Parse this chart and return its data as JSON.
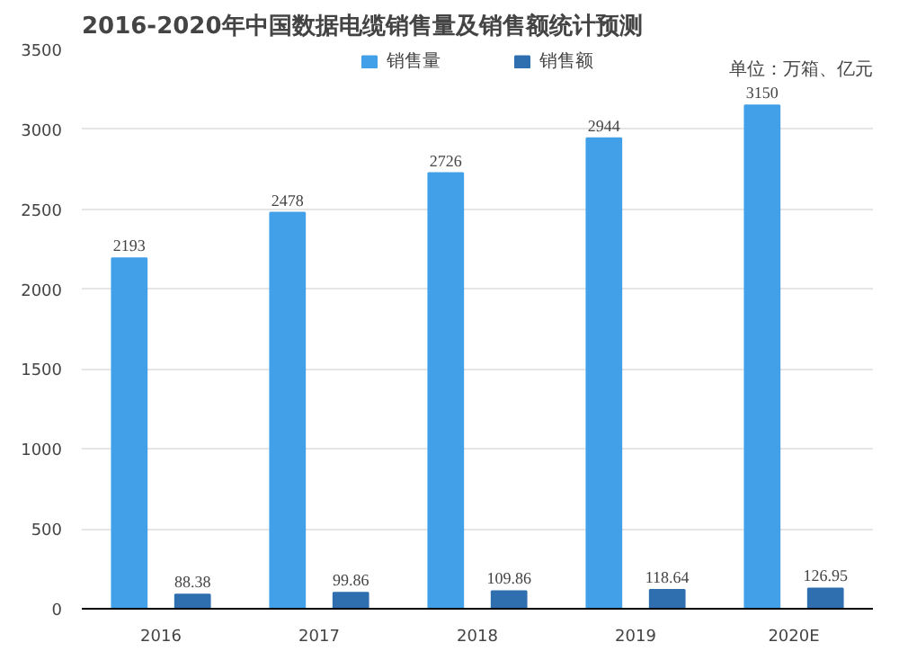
{
  "chart_data": {
    "type": "bar",
    "title": "2016-2020年中国数据电缆销售量及销售额统计预测",
    "categories": [
      "2016",
      "2017",
      "2018",
      "2019",
      "2020E"
    ],
    "series": [
      {
        "name": "销售量",
        "color": "#41a0e8",
        "values": [
          2193,
          2478,
          2726,
          2944,
          3150
        ]
      },
      {
        "name": "销售额",
        "color": "#2f6fb0",
        "values": [
          88.38,
          99.86,
          109.86,
          118.64,
          126.95
        ]
      }
    ],
    "ylim": [
      0,
      3500
    ],
    "yticks": [
      0,
      500,
      1000,
      1500,
      2000,
      2500,
      3000,
      3500
    ],
    "grid": "y",
    "legend": "top",
    "data_labels": true,
    "annotations": [
      "单位：万箱、亿元"
    ]
  }
}
